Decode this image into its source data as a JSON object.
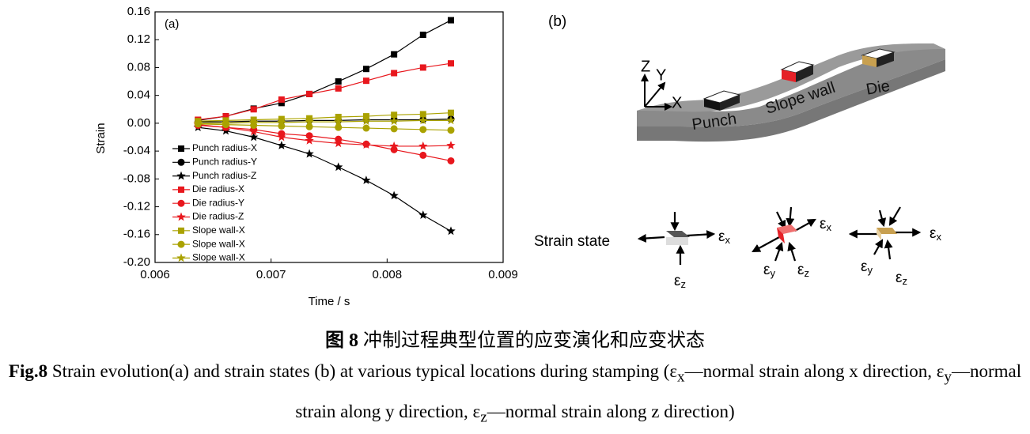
{
  "chart_data": {
    "type": "line",
    "annotation": "(a)",
    "x_label": "Time / s",
    "y_label": "Strain",
    "x": [
      0.00637,
      0.00661,
      0.00685,
      0.00709,
      0.00733,
      0.00758,
      0.00782,
      0.00806,
      0.00831,
      0.00855
    ],
    "series": [
      {
        "name": "Punch radius-X",
        "color": "#000000",
        "marker": "square",
        "values": [
          0.004,
          0.01,
          0.021,
          0.029,
          0.042,
          0.06,
          0.078,
          0.099,
          0.127,
          0.148
        ]
      },
      {
        "name": "Punch radius-Y",
        "color": "#000000",
        "marker": "circle",
        "values": [
          0.002,
          0.002,
          0.003,
          0.003,
          0.004,
          0.004,
          0.005,
          0.005,
          0.005,
          0.006
        ]
      },
      {
        "name": "Punch radius-Z",
        "color": "#000000",
        "marker": "star",
        "values": [
          -0.006,
          -0.011,
          -0.02,
          -0.032,
          -0.044,
          -0.063,
          -0.082,
          -0.104,
          -0.132,
          -0.155
        ]
      },
      {
        "name": "Die radius-X",
        "color": "#e8171d",
        "marker": "square",
        "values": [
          0.005,
          0.01,
          0.02,
          0.034,
          0.042,
          0.05,
          0.061,
          0.072,
          0.08,
          0.086
        ]
      },
      {
        "name": "Die radius-Y",
        "color": "#e8171d",
        "marker": "circle",
        "values": [
          -0.003,
          -0.006,
          -0.009,
          -0.015,
          -0.018,
          -0.023,
          -0.03,
          -0.038,
          -0.046,
          -0.054
        ]
      },
      {
        "name": "Die radius-Z",
        "color": "#e8171d",
        "marker": "star",
        "values": [
          -0.002,
          -0.006,
          -0.012,
          -0.02,
          -0.025,
          -0.029,
          -0.031,
          -0.033,
          -0.033,
          -0.032
        ]
      },
      {
        "name": "Slope wall-X",
        "color": "#aaa200",
        "marker": "square",
        "values": [
          0.003,
          0.004,
          0.005,
          0.006,
          0.007,
          0.009,
          0.01,
          0.012,
          0.013,
          0.015
        ]
      },
      {
        "name": "Slope wall-X",
        "color": "#aaa200",
        "marker": "circle",
        "values": [
          -0.001,
          -0.002,
          -0.003,
          -0.004,
          -0.005,
          -0.006,
          -0.007,
          -0.008,
          -0.009,
          -0.01
        ]
      },
      {
        "name": "Slope wall-X",
        "color": "#aaa200",
        "marker": "star",
        "values": [
          0.0,
          0.0,
          0.001,
          0.001,
          0.002,
          0.002,
          0.003,
          0.003,
          0.004,
          0.004
        ]
      }
    ],
    "xlim": [
      0.006,
      0.009
    ],
    "xticks": [
      0.006,
      0.007,
      0.008,
      0.009
    ],
    "ylim": [
      -0.2,
      0.16
    ],
    "yticks": [
      0.16,
      0.12,
      0.08,
      0.04,
      {
        "value": 0,
        "label": "0.00"
      },
      -0.04,
      -0.08,
      -0.12,
      -0.16,
      {
        "value": -0.2,
        "label": "-0.20"
      }
    ],
    "legend": "lower left",
    "grid": false
  },
  "diagram": {
    "label": "(b)",
    "axes": [
      "Z",
      "Y",
      "X"
    ],
    "locations": [
      "Punch",
      "Slope wall",
      "Die"
    ],
    "strain_state_label": "Strain state",
    "epsilon": "ε",
    "subscripts": [
      "x",
      "y",
      "z"
    ]
  },
  "caption": {
    "cn_label": "图 8",
    "cn_text": "冲制过程典型位置的应变演化和应变状态",
    "en_label": "Fig.8",
    "en_parts": [
      "Strain evolution(a) and strain states (b) at various typical locations during stamping (ε",
      "x",
      "—normal strain along x direction, ε",
      "y",
      "—normal strain along y direction, ε",
      "z",
      "—normal strain along z direction)"
    ]
  }
}
